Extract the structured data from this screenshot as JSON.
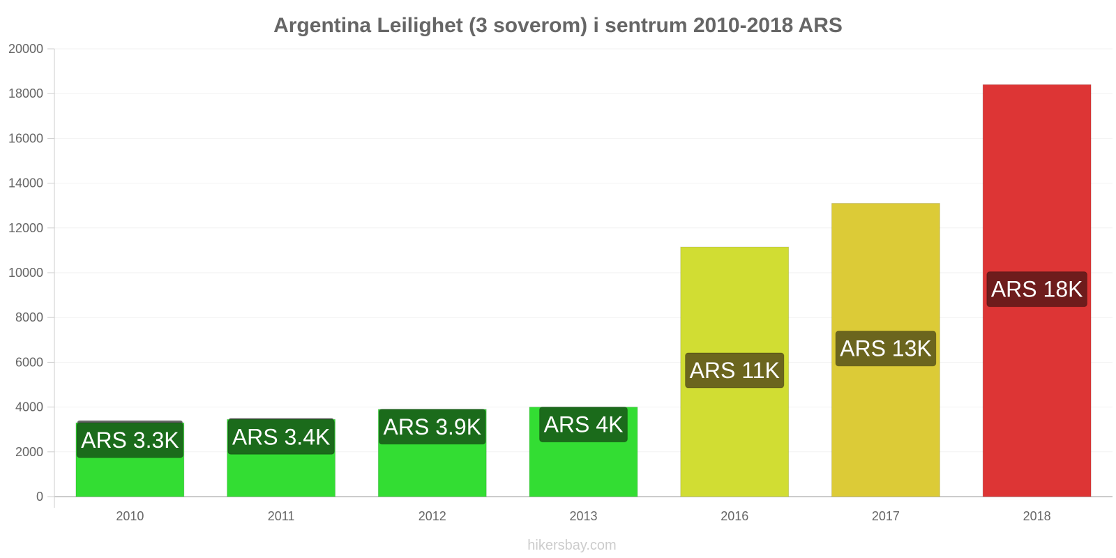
{
  "chart_data": {
    "type": "bar",
    "title": "Argentina Leilighet (3 soverom) i sentrum 2010-2018 ARS",
    "xlabel": "",
    "ylabel": "",
    "ylim": [
      0,
      20000
    ],
    "yticks": [
      0,
      2000,
      4000,
      6000,
      8000,
      10000,
      12000,
      14000,
      16000,
      18000,
      20000
    ],
    "grid": true,
    "categories": [
      "2010",
      "2011",
      "2012",
      "2013",
      "2016",
      "2017",
      "2018"
    ],
    "values": [
      3300,
      3450,
      3900,
      4000,
      11150,
      13100,
      18400
    ],
    "range_top": [
      3400,
      3500,
      null,
      null,
      null,
      null,
      null
    ],
    "data_labels": [
      "ARS 3.3K",
      "ARS 3.4K",
      "ARS 3.9K",
      "ARS 4K",
      "ARS 11K",
      "ARS 13K",
      "ARS 18K"
    ],
    "bar_colors": [
      "#33dd33",
      "#33dd33",
      "#33dd33",
      "#33dd33",
      "#d1dd33",
      "#dccb37",
      "#dd3535"
    ],
    "label_bg_colors": [
      "#1b6b1b",
      "#1b6b1b",
      "#1b6b1b",
      "#1b6b1b",
      "#6b651e",
      "#6b651e",
      "#6e1c1c"
    ],
    "range_color": "#666666"
  },
  "watermark": "hikersbay.com"
}
